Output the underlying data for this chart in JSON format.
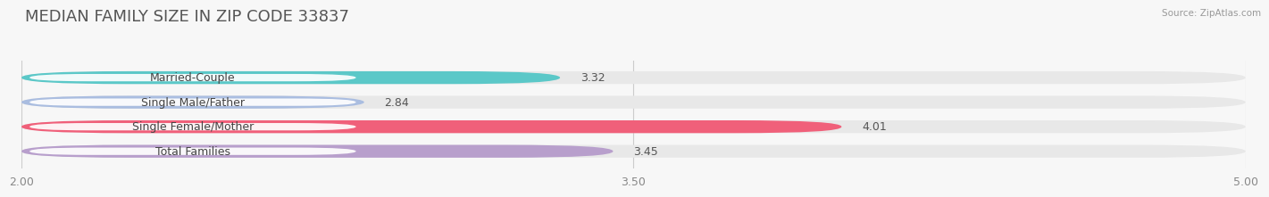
{
  "title": "MEDIAN FAMILY SIZE IN ZIP CODE 33837",
  "source": "Source: ZipAtlas.com",
  "categories": [
    "Married-Couple",
    "Single Male/Father",
    "Single Female/Mother",
    "Total Families"
  ],
  "values": [
    3.32,
    2.84,
    4.01,
    3.45
  ],
  "bar_colors": [
    "#5bc8c8",
    "#aabde0",
    "#f0607a",
    "#b89fcc"
  ],
  "bar_bg_color": "#e8e8e8",
  "xlim": [
    2.0,
    5.0
  ],
  "xticks": [
    2.0,
    3.5,
    5.0
  ],
  "xtick_labels": [
    "2.00",
    "3.50",
    "5.00"
  ],
  "background_color": "#f7f7f7",
  "title_fontsize": 13,
  "label_fontsize": 9,
  "value_fontsize": 9,
  "bar_height": 0.52,
  "label_color": "#444444"
}
